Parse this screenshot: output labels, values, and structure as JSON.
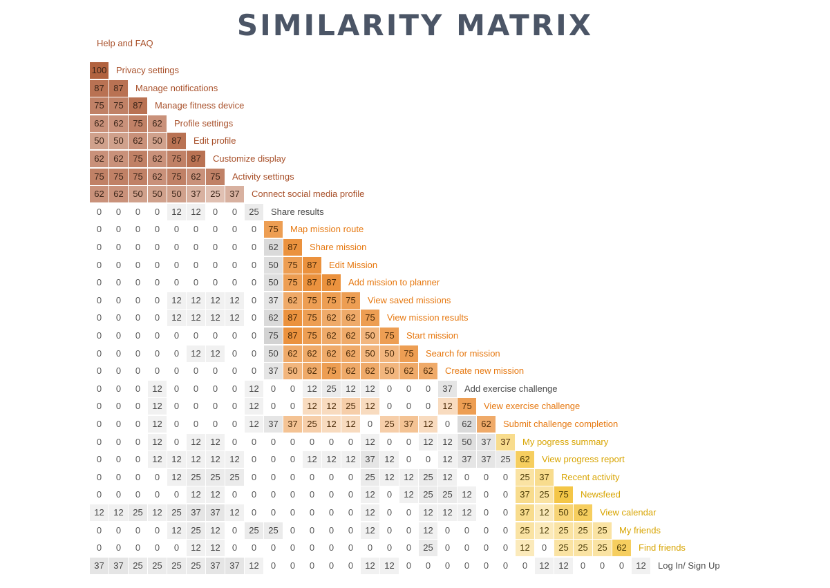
{
  "title": "SIMILARITY MATRIX",
  "chart_data": {
    "type": "heatmap",
    "title": "SIMILARITY MATRIX",
    "first_label": "Help and FAQ",
    "colors": {
      "group1": "#a8502a",
      "group2": "#e67810",
      "group3": "#d8a400",
      "gray": "#4a4a4a"
    },
    "rows": [
      {
        "label": "Privacy settings",
        "group": 1,
        "values": [
          100
        ]
      },
      {
        "label": "Manage notifications",
        "group": 1,
        "values": [
          87,
          87
        ]
      },
      {
        "label": "Manage fitness device",
        "group": 1,
        "values": [
          75,
          75,
          87
        ]
      },
      {
        "label": "Profile settings",
        "group": 1,
        "values": [
          62,
          62,
          75,
          62
        ]
      },
      {
        "label": "Edit profile",
        "group": 1,
        "values": [
          50,
          50,
          62,
          50,
          87
        ]
      },
      {
        "label": "Customize display",
        "group": 1,
        "values": [
          62,
          62,
          75,
          62,
          75,
          87
        ]
      },
      {
        "label": "Activity settings",
        "group": 1,
        "values": [
          75,
          75,
          75,
          62,
          75,
          62,
          75
        ]
      },
      {
        "label": "Connect social media profile",
        "group": 1,
        "values": [
          62,
          62,
          50,
          50,
          50,
          37,
          25,
          37
        ]
      },
      {
        "label": "Share results",
        "group": 0,
        "values": [
          0,
          0,
          0,
          0,
          12,
          12,
          0,
          0,
          25
        ]
      },
      {
        "label": "Map mission route",
        "group": 2,
        "values": [
          0,
          0,
          0,
          0,
          0,
          0,
          0,
          0,
          0,
          75
        ]
      },
      {
        "label": "Share mission",
        "group": 2,
        "values": [
          0,
          0,
          0,
          0,
          0,
          0,
          0,
          0,
          0,
          62,
          87
        ]
      },
      {
        "label": "Edit Mission",
        "group": 2,
        "values": [
          0,
          0,
          0,
          0,
          0,
          0,
          0,
          0,
          0,
          50,
          75,
          87
        ]
      },
      {
        "label": "Add mission to planner",
        "group": 2,
        "values": [
          0,
          0,
          0,
          0,
          0,
          0,
          0,
          0,
          0,
          50,
          75,
          87,
          87
        ]
      },
      {
        "label": "View saved missions",
        "group": 2,
        "values": [
          0,
          0,
          0,
          0,
          12,
          12,
          12,
          12,
          0,
          37,
          62,
          75,
          75,
          75
        ]
      },
      {
        "label": "View mission results",
        "group": 2,
        "values": [
          0,
          0,
          0,
          0,
          12,
          12,
          12,
          12,
          0,
          62,
          87,
          75,
          62,
          62,
          75
        ]
      },
      {
        "label": "Start mission",
        "group": 2,
        "values": [
          0,
          0,
          0,
          0,
          0,
          0,
          0,
          0,
          0,
          75,
          87,
          75,
          62,
          62,
          50,
          75
        ]
      },
      {
        "label": "Search for mission",
        "group": 2,
        "values": [
          0,
          0,
          0,
          0,
          0,
          12,
          12,
          0,
          0,
          50,
          62,
          62,
          62,
          62,
          50,
          50,
          75
        ]
      },
      {
        "label": "Create new mission",
        "group": 2,
        "values": [
          0,
          0,
          0,
          0,
          0,
          0,
          0,
          0,
          0,
          37,
          50,
          62,
          75,
          62,
          62,
          50,
          62,
          62
        ]
      },
      {
        "label": "Add exercise challenge",
        "group": 0,
        "values": [
          0,
          0,
          0,
          12,
          0,
          0,
          0,
          0,
          12,
          0,
          0,
          12,
          25,
          12,
          12,
          0,
          0,
          0,
          37
        ]
      },
      {
        "label": "View exercise challenge",
        "group": 2,
        "values": [
          0,
          0,
          0,
          12,
          0,
          0,
          0,
          0,
          12,
          0,
          0,
          12,
          12,
          25,
          12,
          0,
          0,
          0,
          12,
          75
        ]
      },
      {
        "label": "Submit challenge completion",
        "group": 2,
        "values": [
          0,
          0,
          0,
          12,
          0,
          0,
          0,
          0,
          12,
          37,
          37,
          25,
          12,
          12,
          0,
          25,
          37,
          12,
          0,
          62,
          62
        ]
      },
      {
        "label": "My pogress summary",
        "group": 3,
        "values": [
          0,
          0,
          0,
          12,
          0,
          12,
          12,
          0,
          0,
          0,
          0,
          0,
          0,
          0,
          12,
          0,
          0,
          12,
          12,
          50,
          37,
          37
        ]
      },
      {
        "label": "View progress report",
        "group": 3,
        "values": [
          0,
          0,
          0,
          12,
          12,
          12,
          12,
          12,
          0,
          0,
          0,
          12,
          12,
          12,
          37,
          12,
          0,
          0,
          12,
          37,
          37,
          25,
          62
        ]
      },
      {
        "label": "Recent activity",
        "group": 3,
        "values": [
          0,
          0,
          0,
          0,
          12,
          25,
          25,
          25,
          0,
          0,
          0,
          0,
          0,
          0,
          25,
          12,
          12,
          25,
          12,
          0,
          0,
          0,
          25,
          37
        ]
      },
      {
        "label": "Newsfeed",
        "group": 3,
        "values": [
          0,
          0,
          0,
          0,
          0,
          12,
          12,
          0,
          0,
          0,
          0,
          0,
          0,
          0,
          12,
          0,
          12,
          25,
          25,
          12,
          0,
          0,
          37,
          25,
          75
        ]
      },
      {
        "label": "View calendar",
        "group": 3,
        "values": [
          12,
          12,
          25,
          12,
          25,
          37,
          37,
          12,
          0,
          0,
          0,
          0,
          0,
          0,
          12,
          0,
          0,
          12,
          12,
          12,
          0,
          0,
          37,
          12,
          50,
          62
        ]
      },
      {
        "label": "My friends",
        "group": 3,
        "values": [
          0,
          0,
          0,
          0,
          12,
          25,
          12,
          0,
          25,
          25,
          0,
          0,
          0,
          0,
          12,
          0,
          0,
          12,
          0,
          0,
          0,
          0,
          25,
          12,
          25,
          25,
          25
        ]
      },
      {
        "label": "Find friends",
        "group": 3,
        "values": [
          0,
          0,
          0,
          0,
          0,
          12,
          12,
          0,
          0,
          0,
          0,
          0,
          0,
          0,
          0,
          0,
          0,
          25,
          0,
          0,
          0,
          0,
          12,
          0,
          25,
          25,
          25,
          62
        ]
      },
      {
        "label": "Log In/ Sign Up",
        "group": 0,
        "values": [
          37,
          37,
          25,
          25,
          25,
          25,
          37,
          37,
          12,
          0,
          0,
          0,
          0,
          0,
          12,
          12,
          0,
          0,
          0,
          0,
          0,
          0,
          0,
          12,
          12,
          0,
          0,
          0,
          12
        ]
      }
    ]
  }
}
